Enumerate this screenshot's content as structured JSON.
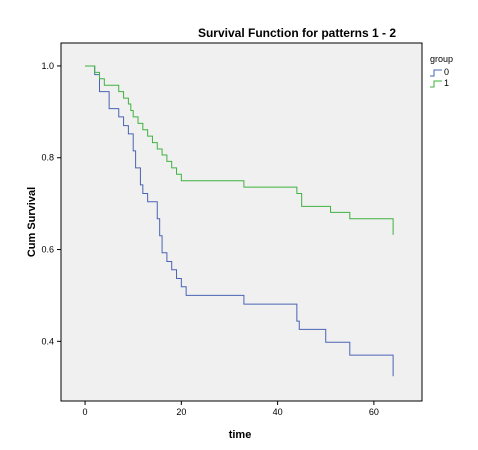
{
  "chart_data": {
    "type": "line",
    "step": true,
    "title": "Survival Function for patterns 1 - 2",
    "xlabel": "time",
    "ylabel": "Cum Survival",
    "xlim": [
      -5,
      70
    ],
    "ylim": [
      0.27,
      1.05
    ],
    "xticks": [
      "0",
      "20",
      "40",
      "60"
    ],
    "yticks": [
      "0.4",
      "0.6",
      "0.8",
      "1.0"
    ],
    "grid": false,
    "legend": {
      "title": "group",
      "position": "top-right"
    },
    "series": [
      {
        "name": "0",
        "color": "#4a64b4",
        "x": [
          0,
          2,
          3,
          5,
          7,
          8,
          9,
          10,
          10.5,
          11.5,
          12,
          13,
          15,
          15.5,
          16,
          17,
          18,
          19,
          20,
          21,
          22,
          33,
          44,
          44.5,
          45,
          50,
          51,
          55,
          64
        ],
        "y": [
          1.0,
          0.981,
          0.944,
          0.907,
          0.889,
          0.87,
          0.852,
          0.815,
          0.778,
          0.741,
          0.722,
          0.704,
          0.667,
          0.63,
          0.593,
          0.574,
          0.556,
          0.537,
          0.519,
          0.5,
          0.5,
          0.481,
          0.444,
          0.426,
          0.426,
          0.398,
          0.398,
          0.37,
          0.37
        ],
        "censored_end": 0.324
      },
      {
        "name": "1",
        "color": "#3fb23f",
        "x": [
          0,
          2,
          3,
          4,
          5,
          7,
          8,
          9,
          9.5,
          10,
          11,
          12,
          13,
          14,
          15,
          16,
          17,
          18,
          19,
          20,
          21,
          22,
          23,
          33,
          44,
          45,
          51,
          55,
          64
        ],
        "y": [
          1.0,
          0.986,
          0.972,
          0.958,
          0.958,
          0.944,
          0.93,
          0.917,
          0.903,
          0.889,
          0.875,
          0.861,
          0.847,
          0.833,
          0.819,
          0.806,
          0.792,
          0.778,
          0.764,
          0.75,
          0.75,
          0.75,
          0.75,
          0.736,
          0.722,
          0.694,
          0.681,
          0.667,
          0.667
        ],
        "censored_end": 0.632
      }
    ]
  }
}
